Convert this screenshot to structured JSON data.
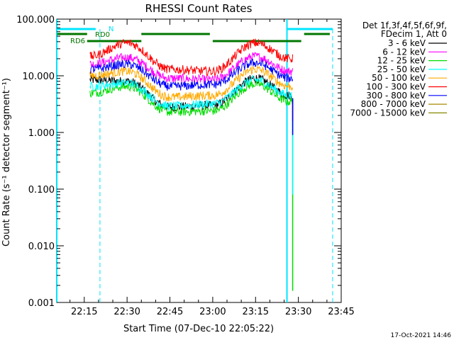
{
  "chart_data": {
    "type": "line",
    "title": "RHESSI Count Rates",
    "xlabel": "Start Time (07-Dec-10 22:05:22)",
    "ylabel": "Count Rate (s⁻¹ detector segment⁻¹)",
    "y_scale": "log",
    "ylim": [
      0.001,
      100
    ],
    "xlim_minutes": [
      "22:05:22",
      "23:45:00"
    ],
    "x_ticks": [
      "22:15",
      "22:30",
      "22:45",
      "23:00",
      "23:15",
      "23:30",
      "23:45"
    ],
    "y_ticks": [
      "0.001",
      "0.010",
      "0.100",
      "1.000",
      "10.000",
      "100.000"
    ],
    "legend_placement": "right-top",
    "legend_header": [
      "Det 1f,3f,4f,5f,6f,9f,",
      "FDecim 1, Att 0"
    ],
    "series": [
      {
        "name": "3 - 6 keV",
        "color": "#000000",
        "x": [
          "22:17",
          "22:30",
          "22:45",
          "23:00",
          "23:15",
          "23:27"
        ],
        "values": [
          8.5,
          8.0,
          2.8,
          3.0,
          9.0,
          4.5
        ]
      },
      {
        "name": "6 - 12 keV",
        "color": "#ff00ff",
        "x": [
          "22:17",
          "22:30",
          "22:45",
          "23:00",
          "23:15",
          "23:27"
        ],
        "values": [
          16,
          21,
          9,
          8.5,
          22,
          12
        ]
      },
      {
        "name": "12 - 25 keV",
        "color": "#00dd00",
        "x": [
          "22:17",
          "22:30",
          "22:45",
          "23:00",
          "23:15",
          "23:27"
        ],
        "values": [
          5.0,
          6.5,
          2.3,
          2.4,
          7.2,
          3.5
        ]
      },
      {
        "name": "25 - 50 keV",
        "color": "#00ffff",
        "x": [
          "22:17",
          "22:30",
          "22:45",
          "23:00",
          "23:15",
          "23:27"
        ],
        "values": [
          6.5,
          7.5,
          2.9,
          3.2,
          8.5,
          4.5
        ]
      },
      {
        "name": "50 - 100 keV",
        "color": "#ffaa00",
        "x": [
          "22:17",
          "22:30",
          "22:45",
          "23:00",
          "23:15",
          "23:27"
        ],
        "values": [
          10,
          12,
          4.2,
          4.5,
          13,
          6.5
        ]
      },
      {
        "name": "100 - 300 keV",
        "color": "#ff0000",
        "x": [
          "22:17",
          "22:30",
          "22:45",
          "23:00",
          "23:15",
          "23:27"
        ],
        "values": [
          22,
          38,
          13,
          12,
          38,
          20
        ]
      },
      {
        "name": "300 - 800 keV",
        "color": "#0000ff",
        "x": [
          "22:17",
          "22:30",
          "22:45",
          "23:00",
          "23:15",
          "23:27"
        ],
        "values": [
          13,
          16,
          6.5,
          7,
          17,
          9
        ]
      },
      {
        "name": "800 - 7000 keV",
        "color": "#aa8800",
        "x": [],
        "values": []
      },
      {
        "name": "7000 - 15000 keV",
        "color": "#888800",
        "x": [],
        "values": []
      }
    ],
    "annotations": {
      "cyan_labels": [
        "N"
      ],
      "green_labels": [
        "RD0",
        "RD6"
      ]
    }
  },
  "footer": {
    "date_stamp": "17-Oct-2021 14:46"
  }
}
